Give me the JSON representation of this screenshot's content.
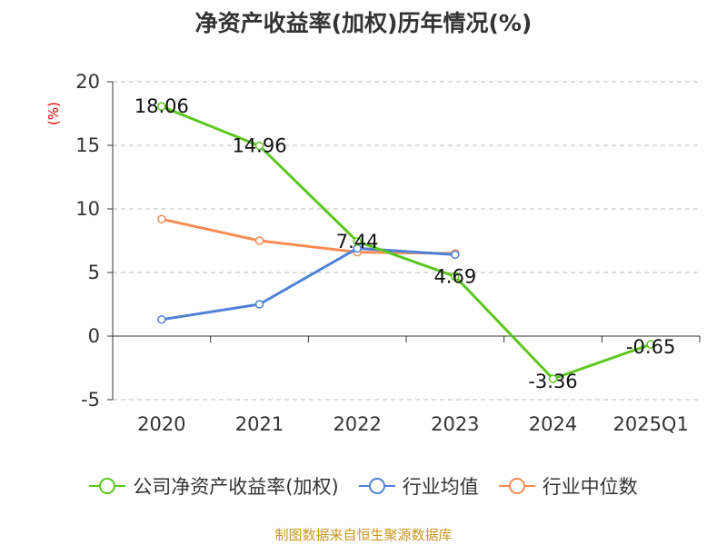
{
  "title": "净资产收益率(加权)历年情况(%)",
  "unit_label": "(%)",
  "source": "制图数据来自恒生聚源数据库",
  "chart_data": {
    "type": "line",
    "categories": [
      "2020",
      "2021",
      "2022",
      "2023",
      "2024",
      "2025Q1"
    ],
    "ylim": [
      -5,
      20
    ],
    "yticks": [
      -5,
      0,
      5,
      10,
      15,
      20
    ],
    "grid": true,
    "legend_position": "bottom",
    "series": [
      {
        "name": "公司净资产收益率(加权)",
        "color": "#5cc71f",
        "values": [
          18.06,
          14.96,
          7.44,
          4.69,
          -3.36,
          -0.65
        ],
        "labels": [
          "18.06",
          "14.96",
          "7.44",
          "4.69",
          "-3.36",
          "-0.65"
        ]
      },
      {
        "name": "行业均值",
        "color": "#4f81d9",
        "values": [
          1.3,
          2.5,
          6.9,
          6.4,
          null,
          null
        ]
      },
      {
        "name": "行业中位数",
        "color": "#f78c55",
        "values": [
          9.2,
          7.5,
          6.6,
          6.5,
          null,
          null
        ]
      }
    ]
  }
}
